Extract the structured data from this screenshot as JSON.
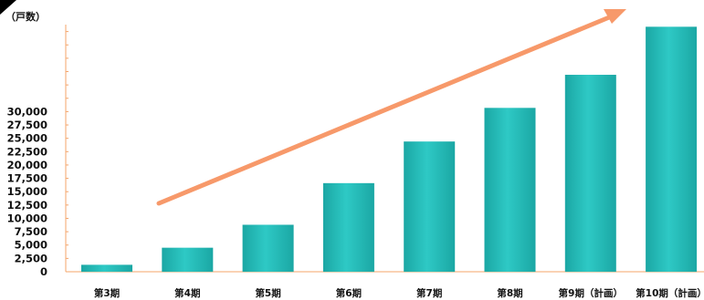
{
  "chart_data": {
    "type": "bar",
    "unit_label": "（戸数）",
    "categories": [
      "第3期",
      "第4期",
      "第5期",
      "第6期",
      "第7期",
      "第8期",
      "第9期（計画）",
      "第10期（計画）"
    ],
    "values": [
      1300,
      4500,
      8800,
      16600,
      24400,
      30700,
      36900,
      45900
    ],
    "y_tick_labels": [
      "0",
      "2,500",
      "5,000",
      "7,500",
      "10,000",
      "12,500",
      "15,000",
      "17,500",
      "20,000",
      "22,500",
      "25,000",
      "27,500",
      "30,000"
    ],
    "y_tick_step": 2500,
    "ylim": [
      0,
      46300
    ],
    "grid": false,
    "bar_color": "#2ec9c5",
    "bar_color_dark": "#1ba7a4",
    "arrow_color": "#f7996a",
    "corner_mark_color": "#000000"
  }
}
